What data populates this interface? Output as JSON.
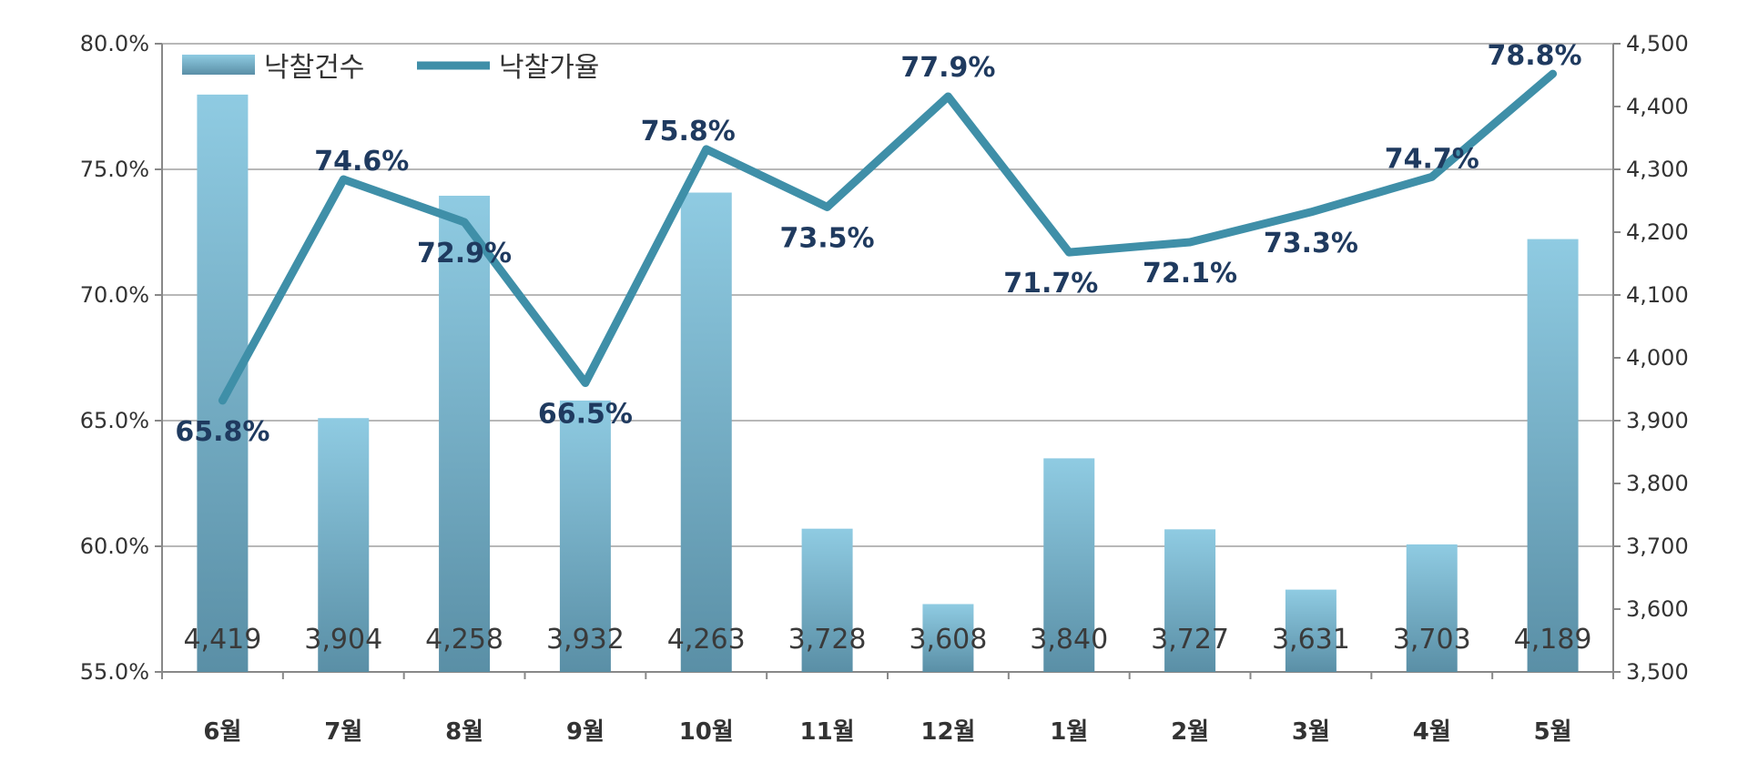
{
  "chart_data": {
    "type": "bar",
    "categories": [
      "6월",
      "7월",
      "8월",
      "9월",
      "10월",
      "11월",
      "12월",
      "1월",
      "2월",
      "3월",
      "4월",
      "5월"
    ],
    "series": [
      {
        "name": "낙찰건수",
        "type": "bar",
        "axis": "right",
        "values": [
          4419,
          3904,
          4258,
          3932,
          4263,
          3728,
          3608,
          3840,
          3727,
          3631,
          3703,
          4189
        ],
        "labels": [
          "4,419",
          "3,904",
          "4,258",
          "3,932",
          "4,263",
          "3,728",
          "3,608",
          "3,840",
          "3,727",
          "3,631",
          "3,703",
          "4,189"
        ]
      },
      {
        "name": "낙찰가율",
        "type": "line",
        "axis": "left",
        "values": [
          65.8,
          74.6,
          72.9,
          66.5,
          75.8,
          73.5,
          77.9,
          71.7,
          72.1,
          73.3,
          74.7,
          78.8
        ],
        "labels": [
          "65.8%",
          "74.6%",
          "72.9%",
          "66.5%",
          "75.8%",
          "73.5%",
          "77.9%",
          "71.7%",
          "72.1%",
          "73.3%",
          "74.7%",
          "78.8%"
        ]
      }
    ],
    "y_left": {
      "ylim": [
        55,
        80
      ],
      "ticks": [
        55,
        60,
        65,
        70,
        75,
        80
      ],
      "tick_labels": [
        "55.0%",
        "60.0%",
        "65.0%",
        "70.0%",
        "75.0%",
        "80.0%"
      ]
    },
    "y_right": {
      "ylim": [
        3500,
        4500
      ],
      "ticks": [
        3500,
        3600,
        3700,
        3800,
        3900,
        4000,
        4100,
        4200,
        4300,
        4400,
        4500
      ],
      "tick_labels": [
        "3,500",
        "3,600",
        "3,700",
        "3,800",
        "3,900",
        "4,000",
        "4,100",
        "4,200",
        "4,300",
        "4,400",
        "4,500"
      ]
    },
    "grid": true,
    "legend_position": "top-left",
    "colors": {
      "bar_top": "#8fcbe2",
      "bar_bottom": "#5a8fa6",
      "line": "#3f8fa8",
      "grid": "#a0a0a0",
      "rate_label": "#1f3a5f"
    }
  }
}
